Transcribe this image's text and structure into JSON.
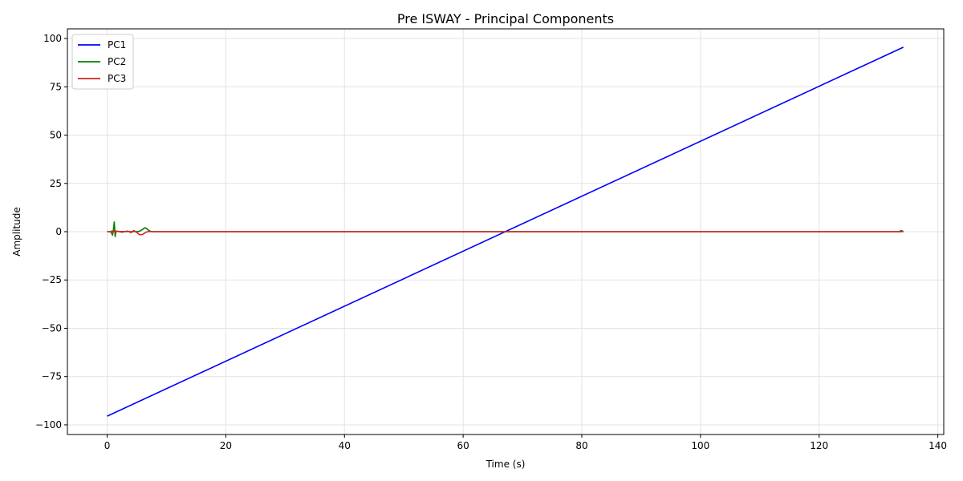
{
  "chart_data": {
    "type": "line",
    "title": "Pre ISWAY - Principal Components",
    "xlabel": "Time (s)",
    "ylabel": "Amplitude",
    "xlim": [
      -6.7,
      141
    ],
    "ylim": [
      -105,
      105
    ],
    "xticks": [
      0,
      20,
      40,
      60,
      80,
      100,
      120,
      140
    ],
    "yticks": [
      -100,
      -75,
      -50,
      -25,
      0,
      25,
      50,
      75,
      100
    ],
    "grid": true,
    "legend_position": "top-left",
    "series": [
      {
        "name": "PC1",
        "color": "#0000ff",
        "x": [
          0,
          134.2
        ],
        "y": [
          -95.5,
          95.5
        ]
      },
      {
        "name": "PC2",
        "color": "#008000",
        "x": [
          0,
          0.5,
          0.7,
          0.9,
          1.05,
          1.2,
          1.35,
          1.5,
          1.7,
          2.0,
          2.5,
          3.0,
          3.5,
          4.0,
          4.5,
          5.0,
          5.5,
          6.0,
          6.3,
          6.6,
          7.0,
          7.4,
          8.0,
          10,
          20,
          40,
          60,
          80,
          100,
          120,
          133.5,
          133.8,
          134.2
        ],
        "y": [
          0,
          0,
          -0.5,
          -1.8,
          1.0,
          5.0,
          -2.5,
          0.3,
          0.2,
          0,
          0.1,
          0,
          0.1,
          0,
          0.1,
          0,
          0.3,
          1.2,
          2.0,
          1.8,
          0.6,
          0.1,
          0,
          0,
          0,
          0,
          0,
          0,
          0,
          0,
          0,
          0.6,
          0.1
        ]
      },
      {
        "name": "PC3",
        "color": "#d62020",
        "x": [
          0,
          0.6,
          0.8,
          1.0,
          1.2,
          1.4,
          1.6,
          2.0,
          2.5,
          3.0,
          3.5,
          4.0,
          4.5,
          5.0,
          5.5,
          6.0,
          6.5,
          7.0,
          7.5,
          8.0,
          10,
          20,
          40,
          60,
          80,
          100,
          120,
          134.2
        ],
        "y": [
          0,
          0,
          0.4,
          -0.4,
          0.6,
          -0.6,
          0.3,
          0.1,
          -0.3,
          0.1,
          0.3,
          -0.5,
          0.6,
          -0.4,
          -1.6,
          -1.4,
          -0.3,
          0.1,
          0,
          0,
          0,
          0,
          0,
          0,
          0,
          0,
          0,
          0
        ]
      }
    ]
  }
}
